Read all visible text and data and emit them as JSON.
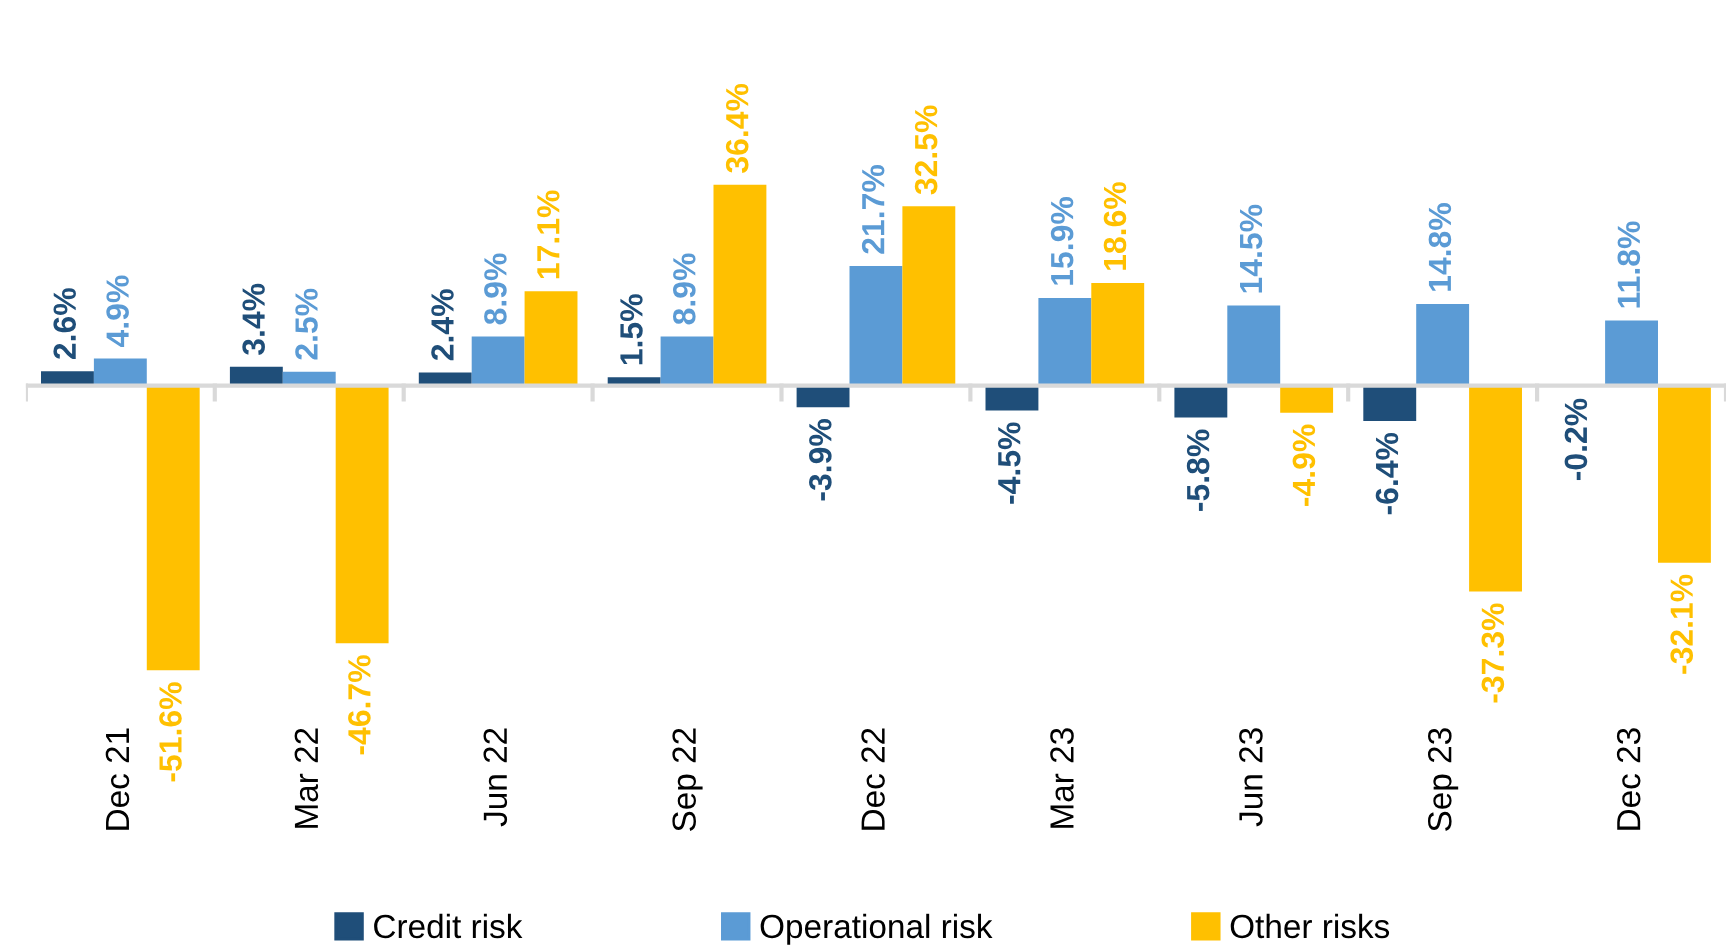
{
  "chart_data": {
    "type": "bar",
    "categories": [
      "Dec 21",
      "Mar 22",
      "Jun 22",
      "Sep 22",
      "Dec 22",
      "Mar 23",
      "Jun 23",
      "Sep 23",
      "Dec 23"
    ],
    "series": [
      {
        "name": "Credit risk",
        "color": "#1f4e79",
        "values": [
          2.6,
          3.4,
          2.4,
          1.5,
          -3.9,
          -4.5,
          -5.8,
          -6.4,
          -0.2
        ],
        "value_labels": [
          "2.6%",
          "3.4%",
          "2.4%",
          "1.5%",
          "-3.9%",
          "-4.5%",
          "-5.8%",
          "-6.4%",
          "-0.2%"
        ]
      },
      {
        "name": "Operational risk",
        "color": "#5b9bd5",
        "values": [
          4.9,
          2.5,
          8.9,
          8.9,
          21.7,
          15.9,
          14.5,
          14.8,
          11.8
        ],
        "value_labels": [
          "4.9%",
          "2.5%",
          "8.9%",
          "8.9%",
          "21.7%",
          "15.9%",
          "14.5%",
          "14.8%",
          "11.8%"
        ]
      },
      {
        "name": "Other risks",
        "color": "#ffc000",
        "values": [
          -51.6,
          -46.7,
          17.1,
          36.4,
          32.5,
          18.6,
          -4.9,
          -37.3,
          -32.1
        ],
        "value_labels": [
          "-51.6%",
          "-46.7%",
          "17.1%",
          "36.4%",
          "32.5%",
          "18.6%",
          "-4.9%",
          "-37.3%",
          "-32.1%"
        ]
      }
    ],
    "legend": "bottom",
    "grid": false
  }
}
